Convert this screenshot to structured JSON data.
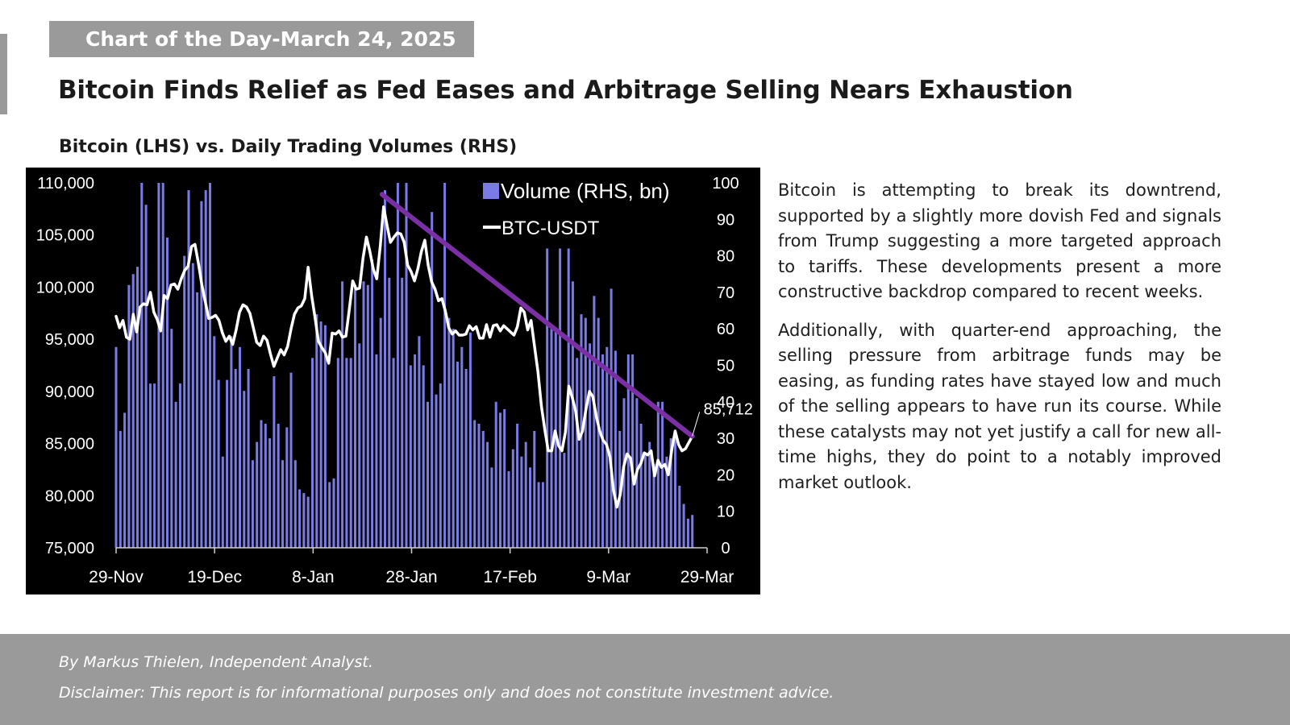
{
  "badge": "Chart of the Day-March 24, 2025",
  "headline": "Bitcoin Finds Relief as Fed Eases and Arbitrage Selling Nears Exhaustion",
  "chart_title": "Bitcoin (LHS) vs. Daily Trading Volumes (RHS)",
  "commentary": [
    "Bitcoin is attempting to break its downtrend, supported by a slightly more dovish Fed and signals from Trump suggesting a more targeted approach to tariffs. These developments present a more constructive backdrop compared to recent weeks.",
    "Additionally, with quarter-end approaching, the selling pressure from arbitrage funds may be easing, as funding rates have stayed low and much of the selling appears to have run its course. While these catalysts may not yet justify a call for new all-time highs, they do point to a notably improved market outlook."
  ],
  "footer": {
    "byline": "By Markus Thielen, Independent Analyst.",
    "disclaimer": "Disclaimer: This report is for informational purposes only and does not constitute investment advice."
  },
  "colors": {
    "background": "#000000",
    "volume_bars": "#7b7be6",
    "btc_line": "#ffffff",
    "trendline": "#7a2fa5",
    "badge": "#9a9a9a"
  },
  "chart_data": {
    "type": "bar",
    "x_tick_labels": [
      "29-Nov",
      "19-Dec",
      "8-Jan",
      "28-Jan",
      "17-Feb",
      "9-Mar",
      "29-Mar"
    ],
    "x_range": [
      "2024-11-29",
      "2025-03-29"
    ],
    "left_axis": {
      "ylim": [
        75000,
        110000
      ],
      "ticks": [
        "75,000",
        "80,000",
        "85,000",
        "90,000",
        "95,000",
        "100,000",
        "105,000",
        "110,000"
      ]
    },
    "right_axis": {
      "ylim": [
        0,
        100
      ],
      "ticks": [
        "0",
        "10",
        "20",
        "30",
        "40",
        "50",
        "60",
        "70",
        "80",
        "90",
        "100"
      ]
    },
    "legend": {
      "position": "top-right",
      "volume_label": "Volume (RHS, bn)",
      "btc_label": "BTC-USDT"
    },
    "end_label": "85,712",
    "series": [
      {
        "name": "Volume (RHS, bn)",
        "axis": "right",
        "kind": "bar",
        "values": [
          55,
          32,
          37,
          72,
          75,
          77,
          100,
          94,
          45,
          45,
          100,
          100,
          85,
          60,
          40,
          45,
          80,
          98,
          78,
          70,
          95,
          98,
          100,
          58,
          46,
          25,
          46,
          58,
          49,
          55,
          43,
          49,
          24,
          29,
          35,
          34,
          30,
          47,
          34,
          24,
          33,
          48,
          24,
          16,
          15,
          14,
          52,
          64,
          62,
          61,
          18,
          19,
          52,
          73,
          52,
          52,
          72,
          56,
          73,
          72,
          79,
          53,
          63,
          98,
          74,
          52,
          100,
          74,
          100,
          50,
          53,
          58,
          50,
          40,
          92,
          42,
          45,
          100,
          63,
          60,
          51,
          55,
          49,
          59,
          35,
          34,
          32,
          29,
          22,
          40,
          37,
          38,
          21,
          27,
          34,
          25,
          29,
          22,
          32,
          18,
          18,
          82,
          60,
          60,
          82,
          26,
          82,
          73,
          52,
          64,
          63,
          56,
          69,
          63,
          53,
          55,
          71,
          54,
          32,
          41,
          53,
          53,
          41,
          34,
          26,
          29,
          23,
          40,
          40,
          25,
          30,
          31,
          17,
          12,
          8,
          9
        ]
      },
      {
        "name": "BTC-USDT",
        "axis": "left",
        "kind": "line",
        "values": [
          97200,
          96100,
          96800,
          95200,
          95000,
          97400,
          95700,
          98100,
          98400,
          98300,
          99500,
          97600,
          96900,
          95800,
          99200,
          98900,
          100200,
          100300,
          99800,
          100800,
          101600,
          102000,
          103900,
          104100,
          102300,
          100200,
          98600,
          97000,
          97100,
          97300,
          96800,
          95600,
          94800,
          95300,
          94500,
          95900,
          97600,
          98300,
          98100,
          97500,
          96100,
          94700,
          94400,
          95300,
          94900,
          93600,
          92400,
          93200,
          94000,
          93500,
          94300,
          96000,
          97400,
          98000,
          98200,
          98900,
          101900,
          99200,
          97100,
          94800,
          94200,
          93700,
          92700,
          95600,
          95500,
          95800,
          95200,
          95300,
          97900,
          100600,
          99800,
          99900,
          102800,
          104800,
          103400,
          101700,
          100800,
          103900,
          107700,
          105900,
          104300,
          104800,
          105200,
          105100,
          104300,
          102100,
          101500,
          100600,
          101800,
          103400,
          104500,
          102100,
          100500,
          99800,
          98700,
          98900,
          97700,
          96100,
          95500,
          95800,
          95400,
          95400,
          95500,
          96300,
          95900,
          96200,
          95100,
          95100,
          96400,
          95200,
          96300,
          96400,
          95800,
          96300,
          96000,
          95700,
          95400,
          96200,
          98000,
          97600,
          95900,
          96800,
          94300,
          91900,
          88600,
          86300,
          84300,
          84300,
          86200,
          84800,
          84300,
          86100,
          90500,
          89400,
          88100,
          85400,
          86200,
          88300,
          90000,
          89500,
          87600,
          86200,
          85300,
          84900,
          83700,
          80600,
          78900,
          80100,
          82800,
          84000,
          83600,
          81100,
          82500,
          83100,
          84100,
          83900,
          84300,
          81900,
          83400,
          82700,
          83000,
          82000,
          84400,
          86200,
          84900,
          84300,
          84500,
          85100,
          85712
        ]
      },
      {
        "name": "",
        "axis": "left",
        "kind": "trendline",
        "x": [
          "2025-01-22",
          "2025-03-26"
        ],
        "values": [
          108900,
          85700
        ]
      }
    ]
  }
}
